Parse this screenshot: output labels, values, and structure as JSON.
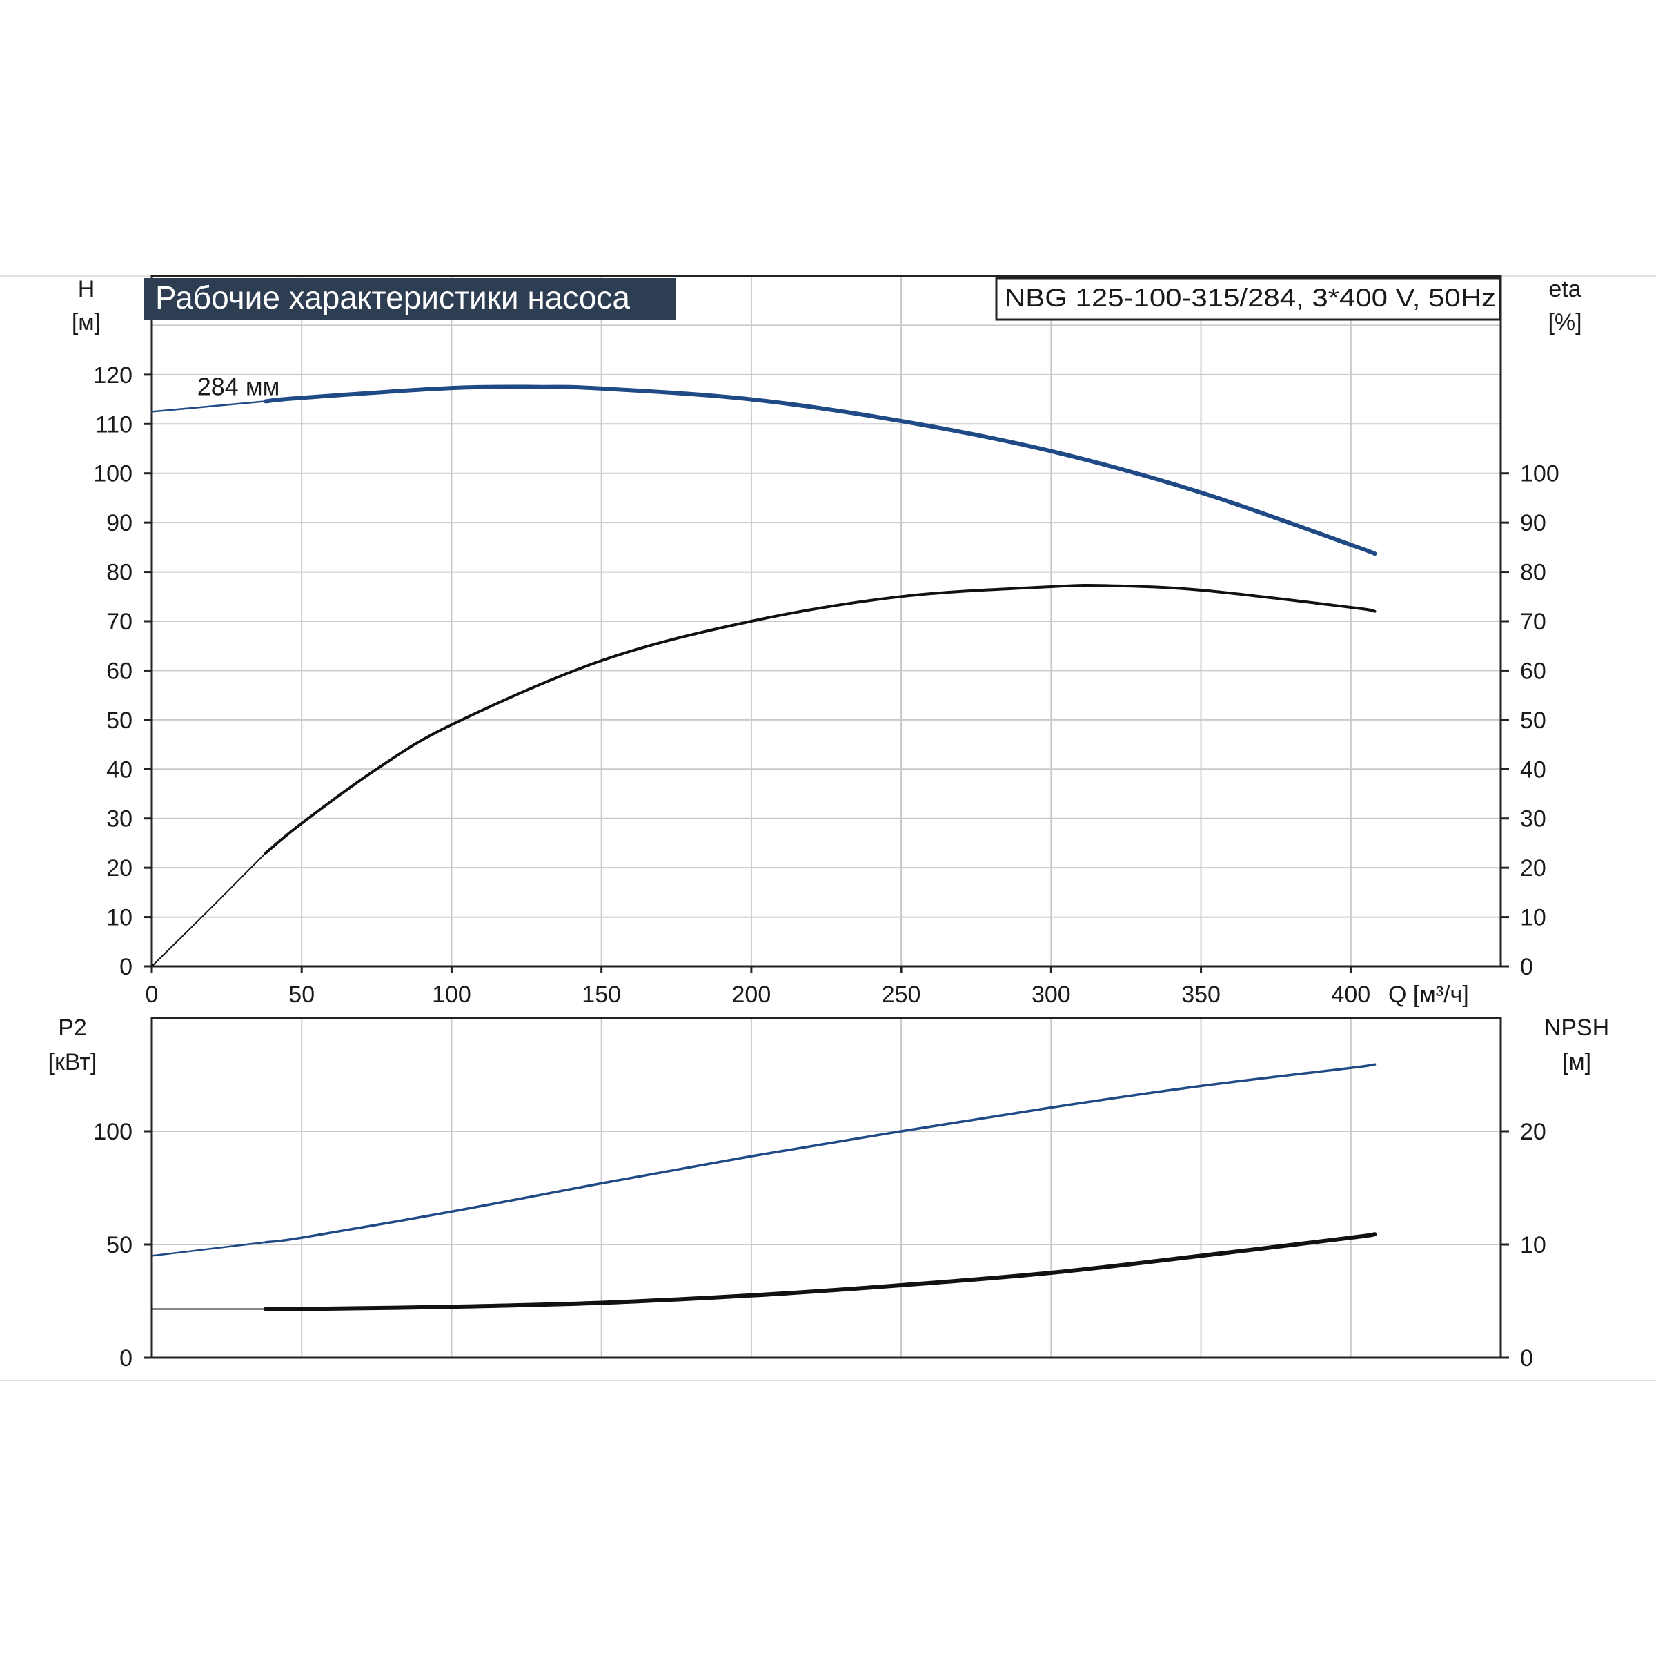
{
  "header": {
    "title": "Рабочие характеристики насоса",
    "model": "NBG 125-100-315/284, 3*400 V, 50Hz",
    "title_bg": "#2d3e52",
    "title_fg": "#ffffff"
  },
  "colors": {
    "blue": "#1f4a85",
    "black": "#111111",
    "grid": "#c9c9c9"
  },
  "chart_data": [
    {
      "type": "line",
      "panel": "head-efficiency",
      "left_axis_name": "H",
      "left_axis_unit": "[м]",
      "right_axis_name": "eta",
      "right_axis_unit": "[%]",
      "x_label": "Q [м³/ч]",
      "xlim": [
        0,
        450
      ],
      "ylim": [
        0,
        140
      ],
      "x_ticks": [
        0,
        50,
        100,
        150,
        200,
        250,
        300,
        350,
        400
      ],
      "left_ticks": [
        0,
        10,
        20,
        30,
        40,
        50,
        60,
        70,
        80,
        90,
        100,
        110,
        120
      ],
      "right_ticks": [
        0,
        10,
        20,
        30,
        40,
        50,
        60,
        70,
        80,
        90,
        100
      ],
      "grid": true,
      "annotations": [
        {
          "text": "284 мм",
          "x": 40,
          "y": 117
        }
      ],
      "series": [
        {
          "name": "H",
          "color_key": "blue",
          "x": [
            0,
            38,
            50,
            100,
            130,
            150,
            200,
            250,
            300,
            350,
            400,
            408
          ],
          "y": [
            112.5,
            114.6,
            115.3,
            117.3,
            117.5,
            117.2,
            115.0,
            110.6,
            104.5,
            96.1,
            85.5,
            83.7
          ]
        },
        {
          "name": "eta",
          "color_key": "black",
          "x": [
            0,
            20,
            38,
            50,
            75,
            100,
            150,
            200,
            250,
            300,
            320,
            350,
            400,
            408
          ],
          "y": [
            0,
            12,
            23,
            29,
            40,
            49,
            62,
            70,
            75,
            77,
            77.2,
            76.3,
            72.8,
            72
          ]
        }
      ]
    },
    {
      "type": "line",
      "panel": "power-npsh",
      "left_axis_name": "P2",
      "left_axis_unit": "[кВт]",
      "right_axis_name": "NPSH",
      "right_axis_unit": "[м]",
      "xlim": [
        0,
        450
      ],
      "ylim": [
        0,
        150
      ],
      "right_ylim": [
        0,
        30
      ],
      "x_ticks": [
        0,
        50,
        100,
        150,
        200,
        250,
        300,
        350,
        400
      ],
      "left_ticks": [
        0,
        50,
        100
      ],
      "right_ticks": [
        0,
        10,
        20
      ],
      "grid": true,
      "series": [
        {
          "name": "P2",
          "color_key": "blue",
          "x": [
            0,
            38,
            50,
            100,
            150,
            200,
            250,
            300,
            350,
            400,
            408
          ],
          "y": [
            45,
            51,
            53,
            64.5,
            77,
            89,
            100,
            110.5,
            120,
            128,
            129.5
          ]
        },
        {
          "name": "NPSH",
          "color_key": "black",
          "x": [
            0,
            38,
            50,
            100,
            150,
            200,
            250,
            300,
            350,
            400,
            408
          ],
          "y": [
            4.3,
            4.3,
            4.3,
            4.5,
            4.85,
            5.5,
            6.4,
            7.5,
            9.0,
            10.6,
            10.9
          ]
        }
      ]
    }
  ]
}
